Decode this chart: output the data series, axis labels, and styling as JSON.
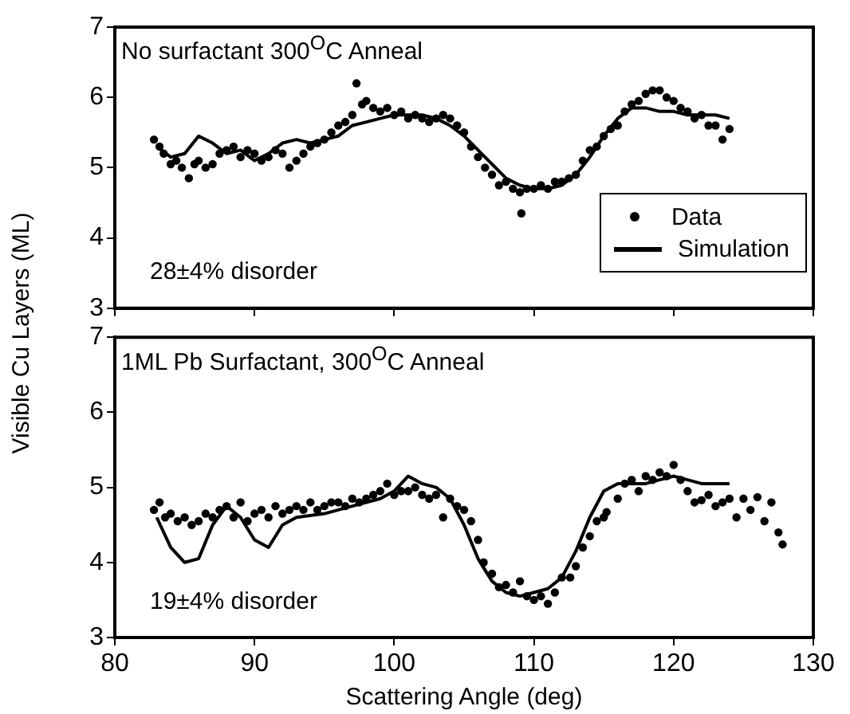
{
  "chart_data": [
    {
      "type": "scatter",
      "title": "No surfactant 300$^{O}$C Anneal",
      "ylabel": "Visible Cu Layers (ML)",
      "annotations": [
        "28±4% disorder"
      ],
      "xlim": [
        80,
        130
      ],
      "xticks": [
        80,
        90,
        100,
        110,
        120,
        130
      ],
      "ylim": [
        3,
        7
      ],
      "yticks": [
        3,
        4,
        5,
        6,
        7
      ],
      "tick_labels": "y",
      "legend": "bottom right",
      "series": [
        {
          "name": "Data",
          "type": "scatter",
          "marker": "circle",
          "color": "#000000",
          "x": [
            82.8,
            83.2,
            83.5,
            84,
            84.4,
            84.8,
            85.3,
            85.7,
            86,
            86.5,
            87,
            87.5,
            88,
            88.5,
            89,
            89.5,
            90,
            90.5,
            91,
            91.5,
            92,
            92.5,
            93,
            93.5,
            94,
            94.5,
            95,
            95.5,
            96,
            96.5,
            97,
            97.3,
            97.7,
            98,
            98.5,
            99,
            99.5,
            100,
            100.5,
            101,
            101.5,
            102,
            102.5,
            103,
            103.5,
            104,
            104.5,
            105,
            105.5,
            106,
            106.5,
            107,
            107.5,
            108,
            108.5,
            109,
            109.1,
            109.5,
            110,
            110.5,
            111,
            111.5,
            112,
            112.5,
            113,
            113.5,
            114,
            114.5,
            115,
            115.5,
            116,
            116.5,
            117,
            117.5,
            118,
            118.5,
            119,
            119.5,
            120,
            120.5,
            121,
            121.5,
            122,
            122.5,
            123,
            123.5,
            124
          ],
          "values": [
            5.4,
            5.3,
            5.2,
            5.05,
            5.1,
            5.0,
            4.85,
            5.05,
            5.1,
            5.0,
            5.05,
            5.2,
            5.25,
            5.3,
            5.15,
            5.25,
            5.2,
            5.1,
            5.15,
            5.25,
            5.2,
            5.0,
            5.1,
            5.2,
            5.3,
            5.35,
            5.4,
            5.5,
            5.6,
            5.65,
            5.75,
            6.2,
            5.9,
            5.95,
            5.85,
            5.8,
            5.85,
            5.75,
            5.8,
            5.7,
            5.75,
            5.7,
            5.65,
            5.7,
            5.75,
            5.7,
            5.6,
            5.5,
            5.3,
            5.15,
            5.0,
            4.9,
            4.75,
            4.8,
            4.7,
            4.65,
            4.35,
            4.7,
            4.7,
            4.75,
            4.7,
            4.8,
            4.8,
            4.85,
            4.9,
            5.1,
            5.25,
            5.3,
            5.45,
            5.55,
            5.6,
            5.8,
            5.9,
            5.95,
            6.05,
            6.1,
            6.1,
            6.0,
            5.95,
            5.85,
            5.8,
            5.7,
            5.75,
            5.6,
            5.6,
            5.4,
            5.55
          ]
        },
        {
          "name": "Simulation",
          "type": "line",
          "marker": "none",
          "color": "#000000",
          "x": [
            83,
            84,
            85,
            86,
            87,
            88,
            89,
            90,
            91,
            92,
            93,
            94,
            95,
            96,
            97,
            98,
            99,
            100,
            101,
            102,
            103,
            104,
            105,
            106,
            107,
            108,
            109,
            110,
            111,
            112,
            113,
            114,
            115,
            116,
            117,
            118,
            119,
            120,
            121,
            122,
            123,
            124
          ],
          "values": [
            5.3,
            5.15,
            5.2,
            5.45,
            5.35,
            5.2,
            5.25,
            5.1,
            5.2,
            5.35,
            5.4,
            5.35,
            5.4,
            5.45,
            5.6,
            5.65,
            5.7,
            5.75,
            5.75,
            5.75,
            5.7,
            5.6,
            5.45,
            5.25,
            5.05,
            4.85,
            4.75,
            4.7,
            4.7,
            4.75,
            4.9,
            5.15,
            5.45,
            5.7,
            5.85,
            5.85,
            5.8,
            5.8,
            5.75,
            5.75,
            5.75,
            5.7
          ]
        }
      ]
    },
    {
      "type": "scatter",
      "title": "1ML Pb Surfactant, 300$^{O}$C Anneal",
      "xlabel": "Scattering Angle (deg)",
      "annotations": [
        "19±4% disorder"
      ],
      "xlim": [
        80,
        130
      ],
      "xticks": [
        80,
        90,
        100,
        110,
        120,
        130
      ],
      "ylim": [
        3,
        7
      ],
      "yticks": [
        3,
        4,
        5,
        6,
        7
      ],
      "series": [
        {
          "type": "scatter",
          "marker": "circle",
          "color": "#000000",
          "x": [
            82.8,
            83.2,
            83.6,
            84,
            84.5,
            85,
            85.5,
            86,
            86.5,
            87,
            87.5,
            88,
            88.5,
            89,
            89.5,
            90,
            90.5,
            91,
            91.5,
            92,
            92.5,
            93,
            93.5,
            94,
            94.5,
            95,
            95.5,
            96,
            96.5,
            97,
            97.5,
            98,
            98.5,
            99,
            99.5,
            100,
            100.5,
            101,
            101.5,
            102,
            102.5,
            103,
            103.5,
            104,
            104.5,
            105,
            105.5,
            106,
            106.4,
            107,
            107.5,
            108,
            108.5,
            109,
            109.5,
            110,
            110.5,
            111,
            111.5,
            112,
            112.6,
            113,
            113.5,
            114,
            114.5,
            115,
            115.2,
            116,
            116.5,
            117,
            117.5,
            118,
            118.5,
            119,
            119.5,
            120,
            120.5,
            121,
            121.5,
            122,
            122.5,
            123,
            123.5,
            124,
            124.5,
            125,
            125.5,
            126,
            126.5,
            127,
            127.5,
            127.8
          ],
          "values": [
            4.7,
            4.8,
            4.6,
            4.65,
            4.55,
            4.6,
            4.5,
            4.55,
            4.65,
            4.6,
            4.7,
            4.75,
            4.6,
            4.8,
            4.55,
            4.65,
            4.7,
            4.6,
            4.75,
            4.65,
            4.7,
            4.75,
            4.7,
            4.8,
            4.7,
            4.75,
            4.8,
            4.8,
            4.75,
            4.85,
            4.8,
            4.85,
            4.9,
            4.95,
            5.05,
            4.9,
            4.95,
            4.95,
            5.0,
            4.9,
            4.85,
            4.9,
            4.6,
            4.85,
            4.75,
            4.7,
            4.55,
            4.3,
            4.0,
            3.85,
            3.67,
            3.7,
            3.6,
            3.75,
            3.55,
            3.5,
            3.55,
            3.45,
            3.6,
            3.8,
            3.8,
            3.95,
            4.2,
            4.35,
            4.55,
            4.6,
            4.67,
            4.85,
            5.05,
            5.1,
            4.95,
            5.15,
            5.1,
            5.2,
            5.15,
            5.3,
            5.1,
            4.95,
            4.8,
            4.83,
            4.9,
            4.75,
            4.8,
            4.85,
            4.6,
            4.85,
            4.7,
            4.87,
            4.55,
            4.8,
            4.4,
            4.24
          ]
        },
        {
          "type": "line",
          "marker": "none",
          "color": "#000000",
          "x": [
            83,
            84,
            85,
            86,
            87,
            88,
            89,
            90,
            91,
            92,
            93,
            95,
            97,
            99,
            100,
            101,
            102,
            103,
            104,
            105,
            106,
            107,
            108,
            109,
            110,
            111,
            112,
            113,
            114,
            115,
            116,
            117,
            118,
            119,
            120,
            121,
            122,
            123,
            124
          ],
          "values": [
            4.6,
            4.2,
            4.0,
            4.05,
            4.5,
            4.75,
            4.6,
            4.3,
            4.2,
            4.5,
            4.6,
            4.65,
            4.75,
            4.85,
            4.95,
            5.15,
            5.05,
            5.0,
            4.85,
            4.5,
            4.05,
            3.75,
            3.6,
            3.55,
            3.6,
            3.65,
            3.8,
            4.15,
            4.6,
            4.95,
            5.05,
            5.05,
            5.05,
            5.1,
            5.15,
            5.1,
            5.05,
            5.05,
            5.05
          ]
        }
      ]
    }
  ]
}
